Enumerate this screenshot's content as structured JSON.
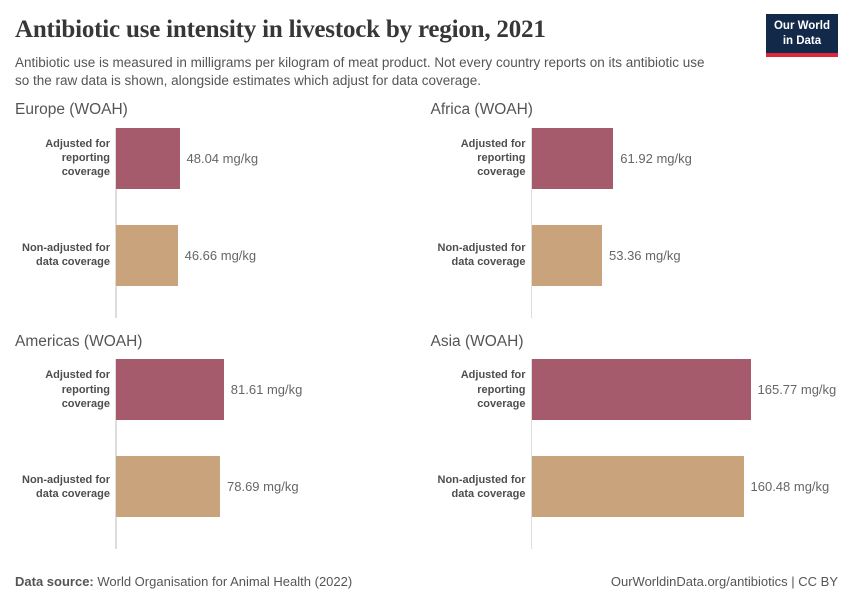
{
  "header": {
    "title": "Antibiotic use intensity in livestock by region, 2021",
    "subtitle": "Antibiotic use is measured in milligrams per kilogram of meat product. Not every country reports on its antibiotic use so the raw data is shown, alongside estimates which adjust for data coverage.",
    "logo": {
      "line1": "Our World",
      "line2": "in Data"
    }
  },
  "chart_data": {
    "type": "bar",
    "orientation": "horizontal",
    "title": "Antibiotic use intensity in livestock by region, 2021",
    "unit": "mg/kg",
    "xlim": [
      0,
      165.77
    ],
    "grid": "off",
    "legend": "none",
    "categories": [
      "Adjusted for reporting coverage",
      "Non-adjusted for data coverage"
    ],
    "category_lines": [
      [
        "Adjusted for",
        "reporting coverage"
      ],
      [
        "Non-adjusted for",
        "data coverage"
      ]
    ],
    "colors": {
      "adjusted": "#a55b6b",
      "non_adjusted": "#c8a37c",
      "axis": "#dddddd"
    },
    "panels": [
      {
        "title": "Europe (WOAH)",
        "values": [
          48.04,
          46.66
        ],
        "value_labels": [
          "48.04 mg/kg",
          "46.66 mg/kg"
        ]
      },
      {
        "title": "Africa (WOAH)",
        "values": [
          61.92,
          53.36
        ],
        "value_labels": [
          "61.92 mg/kg",
          "53.36 mg/kg"
        ]
      },
      {
        "title": "Americas (WOAH)",
        "values": [
          81.61,
          78.69
        ],
        "value_labels": [
          "81.61 mg/kg",
          "78.69 mg/kg"
        ]
      },
      {
        "title": "Asia (WOAH)",
        "values": [
          165.77,
          160.48
        ],
        "value_labels": [
          "165.77 mg/kg",
          "160.48 mg/kg"
        ]
      }
    ]
  },
  "footer": {
    "source_label": "Data source:",
    "source_text": " World Organisation for Animal Health (2022)",
    "link": "OurWorldinData.org/antibiotics | CC BY"
  }
}
